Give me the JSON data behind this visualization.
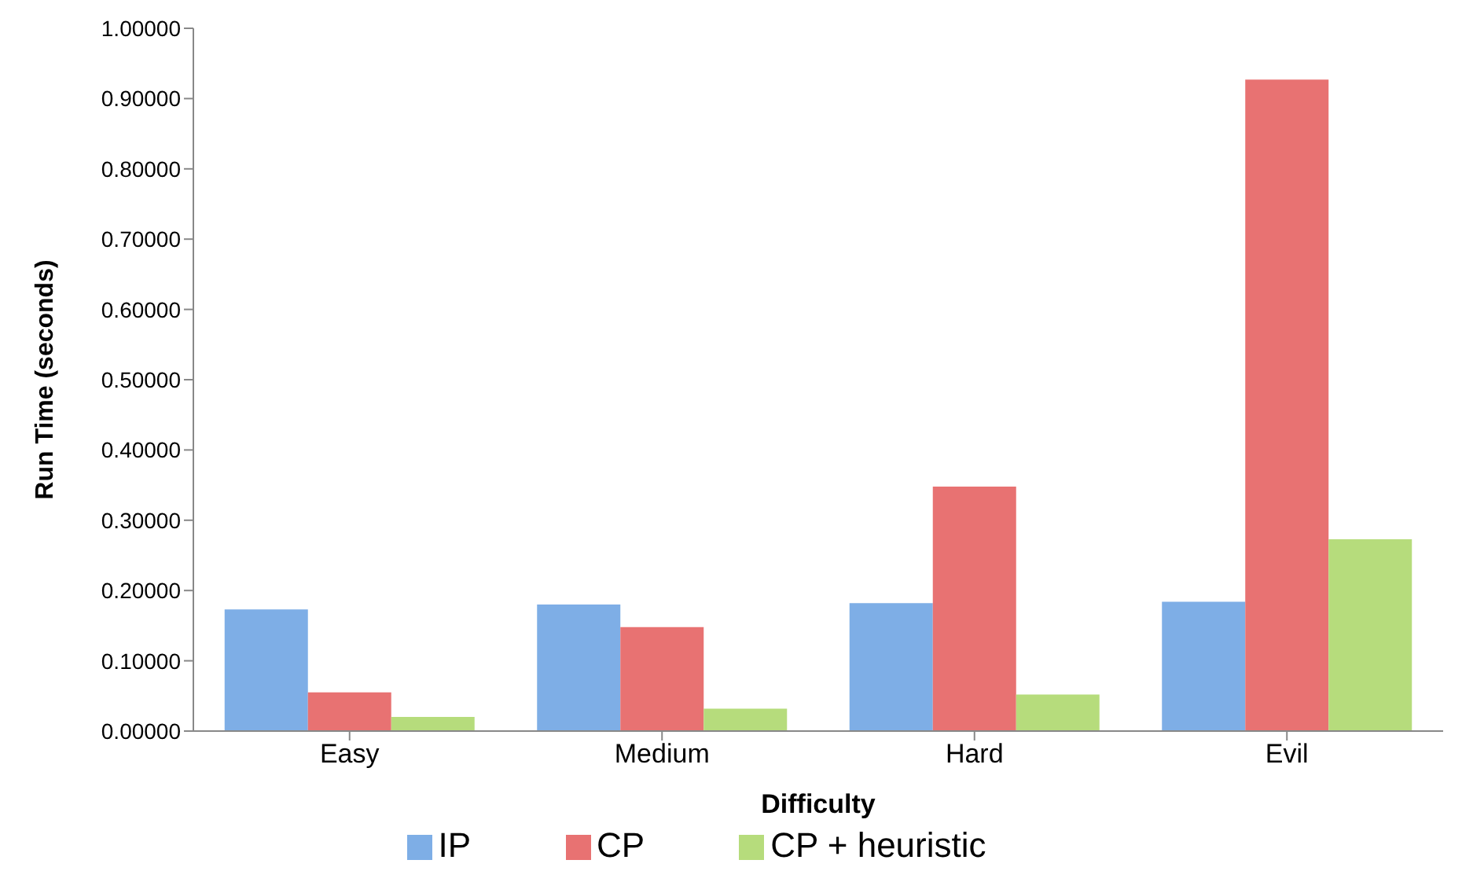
{
  "chart_data": {
    "type": "bar",
    "xlabel": "Difficulty",
    "ylabel": "Run Time (seconds)",
    "categories": [
      "Easy",
      "Medium",
      "Hard",
      "Evil"
    ],
    "series": [
      {
        "name": "IP",
        "color": "#7eaee6",
        "values": [
          0.173,
          0.18,
          0.182,
          0.184
        ]
      },
      {
        "name": "CP",
        "color": "#e87272",
        "values": [
          0.055,
          0.148,
          0.348,
          0.927
        ]
      },
      {
        "name": "CP + heuristic",
        "color": "#b6dc7c",
        "values": [
          0.02,
          0.032,
          0.052,
          0.273
        ]
      }
    ],
    "ylim": [
      0,
      1
    ],
    "yticks": [
      {
        "value": 0,
        "label": "0.00000"
      },
      {
        "value": 0.1,
        "label": "0.10000"
      },
      {
        "value": 0.2,
        "label": "0.20000"
      },
      {
        "value": 0.3,
        "label": "0.30000"
      },
      {
        "value": 0.4,
        "label": "0.40000"
      },
      {
        "value": 0.5,
        "label": "0.50000"
      },
      {
        "value": 0.6,
        "label": "0.60000"
      },
      {
        "value": 0.7,
        "label": "0.70000"
      },
      {
        "value": 0.8,
        "label": "0.80000"
      },
      {
        "value": 0.9,
        "label": "0.90000"
      },
      {
        "value": 1,
        "label": "1.00000"
      }
    ],
    "grid": false,
    "legend": "bottom"
  }
}
